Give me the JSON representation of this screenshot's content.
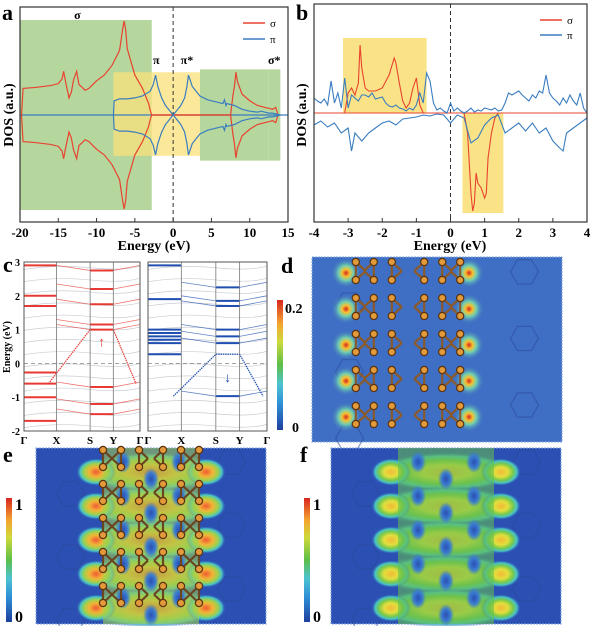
{
  "figure": {
    "panels": [
      "a",
      "b",
      "c",
      "d",
      "e",
      "f"
    ]
  },
  "colors": {
    "sigma": "#e8432f",
    "pi": "#3a7dc0",
    "green_box": "#a8d08d",
    "yellow_box": "#f9e07a",
    "band_red": "#e83a33",
    "band_blue": "#1f4fb0",
    "band_grey": "#c9cdd4",
    "map_bg": "#3f6fc4"
  },
  "chart_data": [
    {
      "panel": "a",
      "type": "line",
      "title": "",
      "xlabel": "Energy (eV)",
      "ylabel": "DOS (a.u.)",
      "xlim": [
        -20,
        15
      ],
      "xticks": [
        "-20",
        "-15",
        "-10",
        "-5",
        "0",
        "5",
        "10",
        "15"
      ],
      "xtick_values": [
        -20,
        -15,
        -10,
        -5,
        0,
        5,
        10,
        15
      ],
      "legend": [
        "σ",
        "π"
      ],
      "legend_position": "top-right",
      "annotations": [
        {
          "text": "σ",
          "x": -12.5,
          "color": "sigma"
        },
        {
          "text": "π",
          "x": -2.2,
          "color": "pi"
        },
        {
          "text": "π*",
          "x": 1.8,
          "color": "pi"
        },
        {
          "text": "σ*",
          "x": 13.2,
          "color": "sigma"
        }
      ],
      "shaded_regions": [
        {
          "x": [
            -20,
            -2.8
          ],
          "y": [
            -1.0,
            1.0
          ],
          "color": "green_box"
        },
        {
          "x": [
            -7.8,
            3.5
          ],
          "y": [
            -0.43,
            0.45
          ],
          "color": "yellow_box"
        },
        {
          "x": [
            3.5,
            12.5
          ],
          "y": [
            -0.48,
            0.48
          ],
          "color": "green_box"
        },
        {
          "x": [
            12.5,
            14
          ],
          "y": [
            -0.48,
            0.48
          ],
          "color": "green_box"
        }
      ],
      "series": [
        {
          "name": "σ",
          "x": [
            -19.8,
            -19.6,
            -18,
            -16,
            -15,
            -14.5,
            -14.3,
            -14,
            -13.6,
            -13.3,
            -13,
            -12.6,
            -12.3,
            -12,
            -11.5,
            -11,
            -10.5,
            -10,
            -9,
            -8,
            -7,
            -6.6,
            -6.4,
            -6.2,
            -6,
            -5,
            -4,
            -3.2,
            -3.0,
            -2.8,
            0,
            7.5,
            7.8,
            8.0,
            8.2,
            8.4,
            9,
            10,
            11,
            12,
            12.5,
            13,
            13.4,
            13.7
          ],
          "y": [
            0,
            0.28,
            0.29,
            0.31,
            0.33,
            0.38,
            0.46,
            0.33,
            0.18,
            0.24,
            0.37,
            0.46,
            0.32,
            0.3,
            0.26,
            0.28,
            0.32,
            0.36,
            0.42,
            0.52,
            0.68,
            0.9,
            0.99,
            0.9,
            0.7,
            0.42,
            0.28,
            0.12,
            0.05,
            0,
            0,
            0,
            0.2,
            0.3,
            0.45,
            0.35,
            0.22,
            0.15,
            0.1,
            0.08,
            0.07,
            0.06,
            0.08,
            0
          ]
        },
        {
          "name": "π",
          "x": [
            -7.8,
            -7.7,
            -7,
            -6,
            -5,
            -4,
            -3,
            -2.6,
            -2.3,
            -2.0,
            -1.5,
            -1,
            -0.5,
            0,
            0.5,
            1,
            1.5,
            1.8,
            2.0,
            2.5,
            3.5,
            4.5,
            5.5,
            6.5,
            6.7,
            6.9,
            7,
            8,
            9,
            10,
            11,
            11.5,
            12,
            12.5,
            13,
            14
          ],
          "y": [
            0,
            0.15,
            0.17,
            0.17,
            0.18,
            0.2,
            0.25,
            0.32,
            0.42,
            0.3,
            0.18,
            0.1,
            0.05,
            0,
            0.05,
            0.1,
            0.18,
            0.3,
            0.42,
            0.3,
            0.2,
            0.16,
            0.14,
            0.12,
            0.16,
            0.1,
            0.12,
            0.1,
            0.06,
            0.04,
            0.03,
            0.04,
            0.03,
            0.02,
            0.02,
            0
          ]
        }
      ],
      "mirrored_about_zero": true
    },
    {
      "panel": "b",
      "type": "line",
      "xlabel": "Energy (eV)",
      "ylabel": "DOS (a.u.)",
      "xlim": [
        -4,
        4
      ],
      "xticks": [
        "-4",
        "-3",
        "-2",
        "-1",
        "0",
        "1",
        "2",
        "3",
        "4"
      ],
      "xtick_values": [
        -4,
        -3,
        -2,
        -1,
        0,
        1,
        2,
        3,
        4
      ],
      "legend": [
        "σ",
        "π"
      ],
      "legend_position": "top-right",
      "shaded_regions": [
        {
          "x": [
            -3.15,
            -0.7
          ],
          "y": [
            0,
            0.75
          ],
          "color": "yellow_box"
        },
        {
          "x": [
            0.35,
            1.55
          ],
          "y": [
            -1.0,
            0
          ],
          "color": "yellow_box"
        }
      ],
      "series": [
        {
          "name": "σ_up",
          "x": [
            -4,
            -3.1,
            -3.0,
            -2.9,
            -2.8,
            -2.7,
            -2.65,
            -2.6,
            -2.5,
            -2.4,
            -2.2,
            -2.0,
            -1.8,
            -1.65,
            -1.6,
            -1.5,
            -1.4,
            -1.3,
            -1.2,
            -1.1,
            -1.0,
            -0.9,
            -0.8,
            4
          ],
          "y": [
            0,
            0,
            0.2,
            0.25,
            0.18,
            0.3,
            0.68,
            0.45,
            0.25,
            0.22,
            0.22,
            0.25,
            0.38,
            0.55,
            0.5,
            0.3,
            0.12,
            0.05,
            0.1,
            0.25,
            0.35,
            0.08,
            0,
            0
          ]
        },
        {
          "name": "σ_down",
          "x": [
            -4,
            0.4,
            0.5,
            0.55,
            0.6,
            0.65,
            0.7,
            0.75,
            0.8,
            0.9,
            1.0,
            1.05,
            1.1,
            1.2,
            1.3,
            1.4,
            4
          ],
          "y": [
            0,
            0,
            -0.2,
            -0.5,
            -0.8,
            -0.98,
            -0.9,
            -0.6,
            -0.7,
            -0.75,
            -0.85,
            -0.8,
            -0.45,
            -0.2,
            -0.05,
            0,
            0
          ]
        },
        {
          "name": "π_up",
          "x": [
            -4,
            -3.9,
            -3.8,
            -3.7,
            -3.6,
            -3.5,
            -3.4,
            -3.3,
            -3.2,
            -3.1,
            -3.0,
            -2.9,
            -2.8,
            -2.7,
            -2.6,
            -2.5,
            -2.4,
            -2.3,
            -2.2,
            -2.1,
            -2.0,
            -1.9,
            -1.8,
            -1.7,
            -1.6,
            -1.5,
            -1.4,
            -1.3,
            -1.2,
            -1.1,
            -1.0,
            -0.9,
            -0.8,
            -0.7,
            -0.6,
            -0.5,
            -0.4,
            -0.3,
            -0.2,
            -0.1,
            0,
            0.1,
            0.2,
            0.3,
            0.4,
            0.5,
            0.6,
            0.7,
            0.8,
            0.9,
            1.0,
            1.1,
            1.2,
            1.3,
            1.4,
            1.5,
            1.6,
            1.7,
            1.8,
            1.9,
            2.0,
            2.1,
            2.2,
            2.3,
            2.4,
            2.5,
            2.6,
            2.7,
            2.8,
            2.9,
            3.0,
            3.1,
            3.2,
            3.3,
            3.4,
            3.5,
            3.6,
            3.7,
            3.8,
            3.9,
            4.0
          ],
          "y": [
            0.15,
            0.12,
            0.1,
            0.14,
            0.08,
            0.32,
            0.1,
            0.2,
            0.05,
            0.35,
            0.05,
            0.18,
            0.15,
            0.12,
            0.18,
            0.18,
            0.16,
            0.2,
            0.14,
            0.15,
            0.16,
            0.1,
            0.07,
            0.06,
            0.08,
            0.05,
            0.04,
            0.02,
            0.05,
            0.03,
            0.08,
            0.2,
            0.1,
            0.4,
            0.32,
            0.1,
            0.03,
            0.05,
            0.02,
            0.0,
            0.1,
            0.02,
            0.05,
            0.02,
            0.0,
            0.02,
            0.05,
            0.01,
            0.03,
            0.02,
            0.05,
            0.04,
            0.03,
            0.05,
            0.02,
            0.03,
            0.1,
            0.2,
            0.18,
            0.2,
            0.22,
            0.18,
            0.15,
            0.12,
            0.18,
            0.15,
            0.22,
            0.2,
            0.38,
            0.2,
            0.15,
            0.12,
            0.08,
            0.15,
            0.1,
            0.18,
            0.12,
            0.08,
            0.2,
            0.05,
            0.0
          ]
        },
        {
          "name": "π_down",
          "x": [
            -4,
            -3.8,
            -3.6,
            -3.4,
            -3.2,
            -3.0,
            -2.9,
            -2.8,
            -2.6,
            -2.4,
            -2.2,
            -2.0,
            -1.8,
            -1.6,
            -1.4,
            -1.2,
            -1.0,
            -0.8,
            -0.6,
            -0.4,
            -0.2,
            0,
            0.2,
            0.4,
            0.6,
            0.8,
            1.0,
            1.2,
            1.4,
            1.6,
            1.8,
            2.0,
            2.2,
            2.4,
            2.6,
            2.8,
            3.0,
            3.2,
            3.3,
            3.4,
            3.6,
            3.8,
            4.0
          ],
          "y": [
            -0.12,
            -0.08,
            -0.14,
            -0.1,
            -0.2,
            -0.15,
            -0.38,
            -0.2,
            -0.28,
            -0.2,
            -0.15,
            -0.1,
            -0.08,
            -0.12,
            -0.06,
            -0.05,
            -0.04,
            -0.02,
            -0.03,
            -0.01,
            -0.02,
            -0.1,
            -0.02,
            -0.05,
            -0.3,
            -0.25,
            -0.12,
            -0.05,
            -0.02,
            -0.2,
            -0.15,
            -0.1,
            -0.18,
            -0.1,
            -0.2,
            -0.15,
            -0.28,
            -0.35,
            -0.38,
            -0.2,
            -0.15,
            -0.1,
            -0.05
          ]
        }
      ]
    },
    {
      "panel": "c",
      "type": "line",
      "ylabel": "Energy (eV)",
      "ylim": [
        -2,
        3
      ],
      "yticks": [
        "3",
        "2",
        "1",
        "0",
        "-1",
        "-2"
      ],
      "ytick_values": [
        3,
        2,
        1,
        0,
        -1,
        -2
      ],
      "kpath": [
        "Γ",
        "X",
        "S",
        "Y",
        "Γ"
      ],
      "subplots": [
        {
          "spin": "up",
          "arrow": "↑",
          "color": "band_red",
          "flat_levels_left": [
            2.9,
            2.0,
            1.7,
            -0.27,
            -0.6,
            -1.0,
            -1.7
          ],
          "flat_levels_mid": [
            2.75,
            2.2,
            1.75,
            1.15,
            1.0,
            -0.7,
            -1.2,
            -1.5
          ],
          "crossing_band": {
            "from": 1.0,
            "to": -0.6
          }
        },
        {
          "spin": "down",
          "arrow": "↓",
          "color": "band_blue",
          "flat_levels_left": [
            2.9,
            1.9,
            1.0,
            0.9,
            0.8,
            0.7,
            0.6,
            0.27
          ],
          "flat_levels_mid": [
            2.25,
            1.85,
            1.7,
            1.0,
            0.8,
            0.6,
            -0.97
          ],
          "crossing_band": {
            "from": 0.27,
            "to": -0.97
          }
        }
      ]
    },
    {
      "panel": "d",
      "type": "heatmap",
      "colorbar_ticks": [
        "0.2",
        "0"
      ],
      "colorbar_range": [
        0,
        0.2
      ]
    },
    {
      "panel": "e",
      "type": "heatmap",
      "colorbar_ticks": [
        "1",
        "0"
      ],
      "colorbar_range": [
        0,
        1
      ]
    },
    {
      "panel": "f",
      "type": "heatmap",
      "colorbar_ticks": [
        "1",
        "0"
      ],
      "colorbar_range": [
        0,
        1
      ]
    }
  ]
}
